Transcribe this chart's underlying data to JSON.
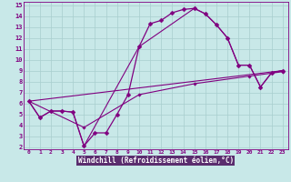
{
  "xlabel": "Windchill (Refroidissement éolien,°C)",
  "bg_color": "#c8e8e8",
  "axis_bg_color": "#5a2d6e",
  "line_color": "#800080",
  "grid_color": "#a8cece",
  "text_color": "#800080",
  "xlabel_color": "#ffffff",
  "xlim": [
    -0.5,
    23.5
  ],
  "ylim": [
    1.8,
    15.3
  ],
  "xticks": [
    0,
    1,
    2,
    3,
    4,
    5,
    6,
    7,
    8,
    9,
    10,
    11,
    12,
    13,
    14,
    15,
    16,
    17,
    18,
    19,
    20,
    21,
    22,
    23
  ],
  "yticks": [
    2,
    3,
    4,
    5,
    6,
    7,
    8,
    9,
    10,
    11,
    12,
    13,
    14,
    15
  ],
  "line1_x": [
    0,
    1,
    2,
    3,
    4,
    5,
    6,
    7,
    8,
    9,
    10,
    11,
    12,
    13,
    14,
    15,
    16,
    17,
    18,
    19,
    20,
    21,
    22,
    23
  ],
  "line1_y": [
    6.2,
    4.7,
    5.3,
    5.3,
    5.2,
    2.1,
    3.3,
    3.3,
    5.0,
    6.8,
    11.2,
    13.3,
    13.6,
    14.3,
    14.6,
    14.7,
    14.2,
    13.2,
    12.0,
    9.5,
    9.5,
    7.5,
    8.8,
    9.0
  ],
  "line2_x": [
    0,
    1,
    2,
    3,
    4,
    5,
    10,
    15,
    16,
    17,
    18,
    19,
    20,
    21,
    22,
    23
  ],
  "line2_y": [
    6.2,
    4.7,
    5.3,
    5.3,
    5.2,
    2.1,
    11.2,
    14.7,
    14.2,
    13.2,
    12.0,
    9.5,
    9.5,
    7.5,
    8.8,
    9.0
  ],
  "line3_x": [
    0,
    23
  ],
  "line3_y": [
    6.2,
    9.0
  ],
  "line4_x": [
    0,
    5,
    10,
    15,
    20,
    23
  ],
  "line4_y": [
    6.2,
    3.8,
    6.8,
    7.8,
    8.5,
    8.9
  ]
}
